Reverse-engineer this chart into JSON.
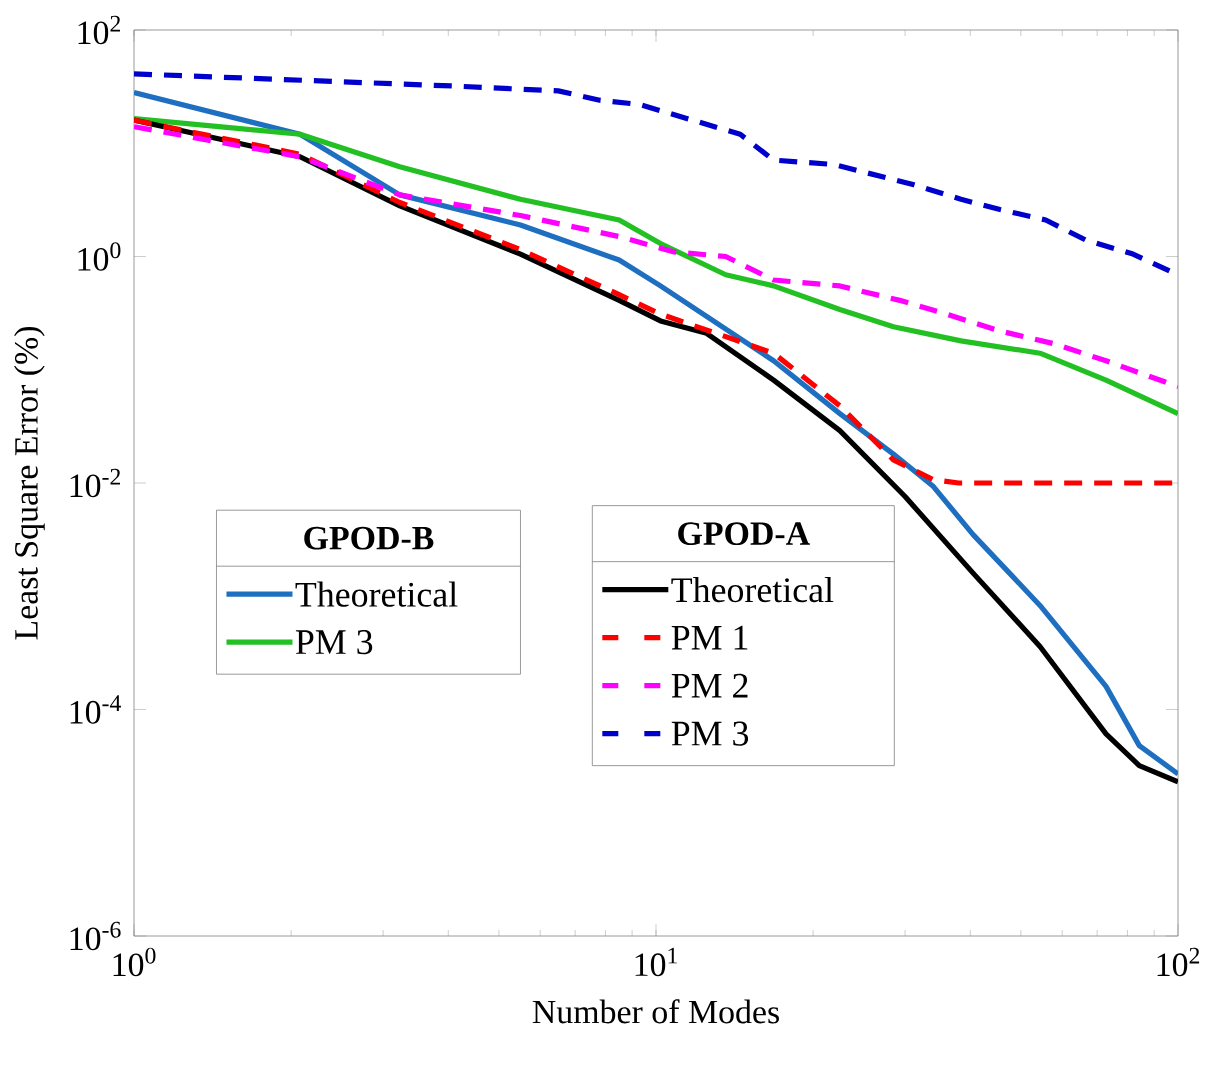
{
  "chart_data": {
    "type": "line",
    "xlabel": "Number of Modes",
    "ylabel": "Least Square Error (%)",
    "log": "xy",
    "xlim": [
      1,
      100
    ],
    "ylim": [
      1e-06,
      100
    ],
    "xticks": [
      {
        "value": 1,
        "label": "10$^{0}$"
      },
      {
        "value": 10,
        "label": "10$^{1}$"
      },
      {
        "value": 100,
        "label": "10$^{2}$"
      }
    ],
    "yticks": [
      {
        "value": 1e-06,
        "label": "10$^{-6}$"
      },
      {
        "value": 0.0001,
        "label": "10$^{-4}$"
      },
      {
        "value": 0.01,
        "label": "10$^{-2}$"
      },
      {
        "value": 1,
        "label": "10$^{0}$"
      },
      {
        "value": 100,
        "label": "10$^{2}$"
      }
    ],
    "legend": "left",
    "legend_title": "GPOD-A",
    "annotations": [
      "GPOD-B"
    ],
    "series": [
      {
        "name": "Theoretical",
        "color": "#1f6fc0",
        "line_style": "solid",
        "x": [
          1,
          2.08,
          3.23,
          5.5,
          8.5,
          10.2,
          16.8,
          22.5,
          28.5,
          34,
          40.5,
          54.4,
          72.8,
          84.3,
          100
        ],
        "values": [
          28,
          12,
          3.5,
          1.9,
          0.93,
          0.55,
          0.12,
          0.041,
          0.018,
          0.0093,
          0.0035,
          0.00083,
          0.00016,
          4.8e-05,
          2.7e-05
        ]
      },
      {
        "name": "PM 3",
        "color": "#22c022",
        "line_style": "solid",
        "x": [
          1,
          2.08,
          3.23,
          5.5,
          8.5,
          10.2,
          13.6,
          16.8,
          22.5,
          28.5,
          38.4,
          54.4,
          72.8,
          100
        ],
        "values": [
          16.5,
          12,
          6.2,
          3.2,
          2.1,
          1.3,
          0.69,
          0.55,
          0.34,
          0.24,
          0.18,
          0.14,
          0.081,
          0.041
        ]
      },
      {
        "name": "Theoretical",
        "color": "#000000",
        "line_style": "solid",
        "x": [
          1,
          2.08,
          3.23,
          5.5,
          8.5,
          10.2,
          12.5,
          16.8,
          22.5,
          30,
          40.5,
          54.4,
          72.8,
          84.3,
          100
        ],
        "values": [
          16,
          7.6,
          2.8,
          1.05,
          0.41,
          0.27,
          0.21,
          0.081,
          0.029,
          0.0076,
          0.0016,
          0.00036,
          6.1e-05,
          3.2e-05,
          2.3e-05
        ]
      },
      {
        "name": "PM 1",
        "color": "#ff0000",
        "line_style": "dashed",
        "x": [
          1,
          2.08,
          3.23,
          5.5,
          8.5,
          10.2,
          16.8,
          22.5,
          28.5,
          34,
          38,
          100
        ],
        "values": [
          16,
          8.0,
          3.0,
          1.15,
          0.46,
          0.31,
          0.14,
          0.048,
          0.016,
          0.0107,
          0.01,
          0.01
        ]
      },
      {
        "name": "PM 2",
        "color": "#ff00ff",
        "line_style": "dashed",
        "x": [
          1,
          2.08,
          3.23,
          5.5,
          8.5,
          10.8,
          13.6,
          16.8,
          22.5,
          29.3,
          36,
          45.6,
          57.8,
          72.8,
          100
        ],
        "values": [
          14,
          7.6,
          3.5,
          2.3,
          1.5,
          1.1,
          1.0,
          0.62,
          0.55,
          0.41,
          0.31,
          0.22,
          0.17,
          0.12,
          0.071
        ]
      },
      {
        "name": "PM 3",
        "color": "#0000cc",
        "line_style": "dashed",
        "x": [
          1,
          4.1,
          6.5,
          7.8,
          9.3,
          14.5,
          16.8,
          21.9,
          31.2,
          38.4,
          45.6,
          55.8,
          66.5,
          82,
          100
        ],
        "values": [
          41,
          32,
          29,
          24,
          22,
          12,
          7.1,
          6.5,
          4.3,
          3.2,
          2.6,
          2.1,
          1.4,
          1.05,
          0.69
        ]
      }
    ]
  }
}
